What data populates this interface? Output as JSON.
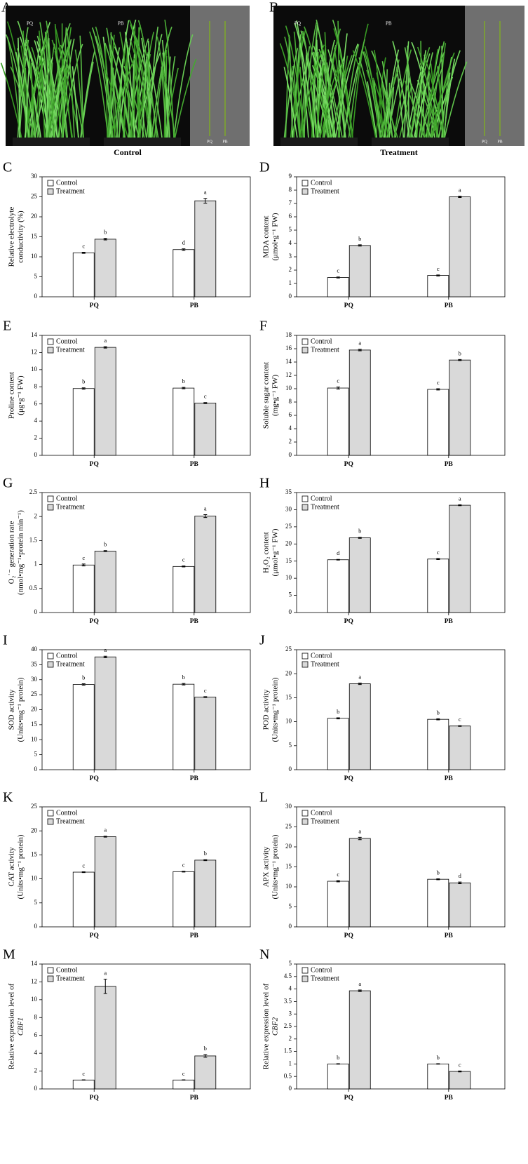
{
  "panels": [
    {
      "letter": "A",
      "caption": "Control",
      "labels": [
        "PQ",
        "PB"
      ],
      "strip_labels": [
        "PQ",
        "PB"
      ]
    },
    {
      "letter": "B",
      "caption": "Treatment",
      "labels": [
        "PQ",
        "PB"
      ],
      "strip_labels": [
        "PQ",
        "PB"
      ]
    }
  ],
  "chart_data": [
    {
      "type": "bar",
      "letter": "C",
      "ylabel": [
        "Relative electrolyte",
        "conductivity (%)"
      ],
      "categories": [
        "PQ",
        "PB"
      ],
      "series": [
        {
          "name": "Control",
          "color": "#ffffff",
          "values": [
            11,
            11.8
          ],
          "errors": [
            0.15,
            0.2
          ],
          "letters": [
            "c",
            "d"
          ]
        },
        {
          "name": "Treatment",
          "color": "#d9d9d9",
          "values": [
            14.4,
            24
          ],
          "errors": [
            0.2,
            0.6
          ],
          "letters": [
            "b",
            "a"
          ]
        }
      ],
      "ylim": [
        0,
        30
      ],
      "yticks": [
        0,
        5,
        10,
        15,
        20,
        25,
        30
      ]
    },
    {
      "type": "bar",
      "letter": "D",
      "ylabel": [
        "MDA content",
        "(μmol•g⁻¹ FW)"
      ],
      "categories": [
        "PQ",
        "PB"
      ],
      "series": [
        {
          "name": "Control",
          "color": "#ffffff",
          "values": [
            1.45,
            1.6
          ],
          "errors": [
            0.04,
            0.04
          ],
          "letters": [
            "c",
            "c"
          ]
        },
        {
          "name": "Treatment",
          "color": "#d9d9d9",
          "values": [
            3.85,
            7.5
          ],
          "errors": [
            0.05,
            0.05
          ],
          "letters": [
            "b",
            "a"
          ]
        }
      ],
      "ylim": [
        0,
        9
      ],
      "yticks": [
        0,
        1,
        2,
        3,
        4,
        5,
        6,
        7,
        8,
        9
      ]
    },
    {
      "type": "bar",
      "letter": "E",
      "ylabel": [
        "Proline content",
        "(μg•g⁻¹ FW)"
      ],
      "categories": [
        "PQ",
        "PB"
      ],
      "series": [
        {
          "name": "Control",
          "color": "#ffffff",
          "values": [
            7.8,
            7.85
          ],
          "errors": [
            0.08,
            0.08
          ],
          "letters": [
            "b",
            "b"
          ]
        },
        {
          "name": "Treatment",
          "color": "#d9d9d9",
          "values": [
            12.6,
            6.1
          ],
          "errors": [
            0.08,
            0.06
          ],
          "letters": [
            "a",
            "c"
          ]
        }
      ],
      "ylim": [
        0,
        14
      ],
      "yticks": [
        0,
        2,
        4,
        6,
        8,
        10,
        12,
        14
      ]
    },
    {
      "type": "bar",
      "letter": "F",
      "ylabel": [
        "Soluble sugar content",
        "(mg•g⁻¹ FW)"
      ],
      "categories": [
        "PQ",
        "PB"
      ],
      "series": [
        {
          "name": "Control",
          "color": "#ffffff",
          "values": [
            10.1,
            9.9
          ],
          "errors": [
            0.15,
            0.1
          ],
          "letters": [
            "c",
            "c"
          ]
        },
        {
          "name": "Treatment",
          "color": "#d9d9d9",
          "values": [
            15.8,
            14.3
          ],
          "errors": [
            0.12,
            0.08
          ],
          "letters": [
            "a",
            "b"
          ]
        }
      ],
      "ylim": [
        0,
        18
      ],
      "yticks": [
        0,
        2,
        4,
        6,
        8,
        10,
        12,
        14,
        16,
        18
      ]
    },
    {
      "type": "bar",
      "letter": "G",
      "ylabel": [
        "O₂˙⁻ generation rate",
        "(nmol•mg⁻¹•protein min⁻¹)"
      ],
      "categories": [
        "PQ",
        "PB"
      ],
      "series": [
        {
          "name": "Control",
          "color": "#ffffff",
          "values": [
            0.99,
            0.96
          ],
          "errors": [
            0.02,
            0.01
          ],
          "letters": [
            "c",
            "c"
          ]
        },
        {
          "name": "Treatment",
          "color": "#d9d9d9",
          "values": [
            1.28,
            2.01
          ],
          "errors": [
            0.01,
            0.03
          ],
          "letters": [
            "b",
            "a"
          ]
        }
      ],
      "ylim": [
        0,
        2.5
      ],
      "yticks": [
        0,
        0.5,
        1,
        1.5,
        2,
        2.5
      ]
    },
    {
      "type": "bar",
      "letter": "H",
      "ylabel": [
        "H₂O₂ content",
        "(μmol•g⁻¹ FW)"
      ],
      "categories": [
        "PQ",
        "PB"
      ],
      "series": [
        {
          "name": "Control",
          "color": "#ffffff",
          "values": [
            15.4,
            15.6
          ],
          "errors": [
            0.1,
            0.15
          ],
          "letters": [
            "d",
            "c"
          ]
        },
        {
          "name": "Treatment",
          "color": "#d9d9d9",
          "values": [
            21.8,
            31.3
          ],
          "errors": [
            0.15,
            0.15
          ],
          "letters": [
            "b",
            "a"
          ]
        }
      ],
      "ylim": [
        0,
        35
      ],
      "yticks": [
        0,
        5,
        10,
        15,
        20,
        25,
        30,
        35
      ]
    },
    {
      "type": "bar",
      "letter": "I",
      "ylabel": [
        "SOD activity",
        "(Units•mg⁻¹ protein)"
      ],
      "categories": [
        "PQ",
        "PB"
      ],
      "series": [
        {
          "name": "Control",
          "color": "#ffffff",
          "values": [
            28.4,
            28.5
          ],
          "errors": [
            0.25,
            0.25
          ],
          "letters": [
            "b",
            "b"
          ]
        },
        {
          "name": "Treatment",
          "color": "#d9d9d9",
          "values": [
            37.6,
            24.2
          ],
          "errors": [
            0.25,
            0.15
          ],
          "letters": [
            "a",
            "c"
          ]
        }
      ],
      "ylim": [
        0,
        40
      ],
      "yticks": [
        0,
        5,
        10,
        15,
        20,
        25,
        30,
        35,
        40
      ]
    },
    {
      "type": "bar",
      "letter": "J",
      "ylabel": [
        "POD activity",
        "(Units•mg⁻¹ protein)"
      ],
      "categories": [
        "PQ",
        "PB"
      ],
      "series": [
        {
          "name": "Control",
          "color": "#ffffff",
          "values": [
            10.7,
            10.5
          ],
          "errors": [
            0.12,
            0.12
          ],
          "letters": [
            "b",
            "b"
          ]
        },
        {
          "name": "Treatment",
          "color": "#d9d9d9",
          "values": [
            17.9,
            9.1
          ],
          "errors": [
            0.15,
            0.08
          ],
          "letters": [
            "a",
            "c"
          ]
        }
      ],
      "ylim": [
        0,
        25
      ],
      "yticks": [
        0,
        5,
        10,
        15,
        20,
        25
      ]
    },
    {
      "type": "bar",
      "letter": "K",
      "ylabel": [
        "CAT activity",
        "(Units•mg⁻¹ protein)"
      ],
      "categories": [
        "PQ",
        "PB"
      ],
      "series": [
        {
          "name": "Control",
          "color": "#ffffff",
          "values": [
            11.4,
            11.5
          ],
          "errors": [
            0.08,
            0.08
          ],
          "letters": [
            "c",
            "c"
          ]
        },
        {
          "name": "Treatment",
          "color": "#d9d9d9",
          "values": [
            18.8,
            13.9
          ],
          "errors": [
            0.1,
            0.1
          ],
          "letters": [
            "a",
            "b"
          ]
        }
      ],
      "ylim": [
        0,
        25
      ],
      "yticks": [
        0,
        5,
        10,
        15,
        20,
        25
      ]
    },
    {
      "type": "bar",
      "letter": "L",
      "ylabel": [
        "APX activity",
        "(Units•mg⁻¹ protein)"
      ],
      "categories": [
        "PQ",
        "PB"
      ],
      "series": [
        {
          "name": "Control",
          "color": "#ffffff",
          "values": [
            11.4,
            11.9
          ],
          "errors": [
            0.15,
            0.12
          ],
          "letters": [
            "c",
            "b"
          ]
        },
        {
          "name": "Treatment",
          "color": "#d9d9d9",
          "values": [
            22.1,
            11
          ],
          "errors": [
            0.3,
            0.2
          ],
          "letters": [
            "a",
            "d"
          ]
        }
      ],
      "ylim": [
        0,
        30
      ],
      "yticks": [
        0,
        5,
        10,
        15,
        20,
        25,
        30
      ]
    },
    {
      "type": "bar",
      "letter": "M",
      "ylabel": [
        "Relative expression level of",
        "CBF1"
      ],
      "ylabel_style": [
        "normal",
        "italic"
      ],
      "categories": [
        "PQ",
        "PB"
      ],
      "series": [
        {
          "name": "Control",
          "color": "#ffffff",
          "values": [
            1,
            1
          ],
          "errors": [
            0.02,
            0.02
          ],
          "letters": [
            "c",
            "c"
          ]
        },
        {
          "name": "Treatment",
          "color": "#d9d9d9",
          "values": [
            11.5,
            3.7
          ],
          "errors": [
            0.8,
            0.15
          ],
          "letters": [
            "a",
            "b"
          ]
        }
      ],
      "ylim": [
        0,
        14
      ],
      "yticks": [
        0,
        2,
        4,
        6,
        8,
        10,
        12,
        14
      ]
    },
    {
      "type": "bar",
      "letter": "N",
      "ylabel": [
        "Relative expression level of",
        "CBF2"
      ],
      "ylabel_style": [
        "normal",
        "italic"
      ],
      "categories": [
        "PQ",
        "PB"
      ],
      "series": [
        {
          "name": "Control",
          "color": "#ffffff",
          "values": [
            1,
            1
          ],
          "errors": [
            0.01,
            0.01
          ],
          "letters": [
            "b",
            "b"
          ]
        },
        {
          "name": "Treatment",
          "color": "#d9d9d9",
          "values": [
            3.93,
            0.7
          ],
          "errors": [
            0.03,
            0.02
          ],
          "letters": [
            "a",
            "c"
          ]
        }
      ],
      "ylim": [
        0,
        5
      ],
      "yticks": [
        0,
        0.5,
        1,
        1.5,
        2,
        2.5,
        3,
        3.5,
        4,
        4.5,
        5
      ]
    }
  ]
}
